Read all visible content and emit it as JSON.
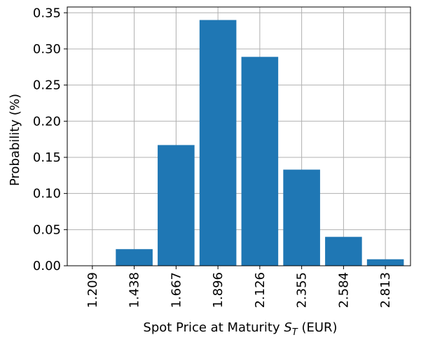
{
  "chart_data": {
    "type": "bar",
    "categories": [
      "1.209",
      "1.438",
      "1.667",
      "1.896",
      "2.126",
      "2.355",
      "2.584",
      "2.813"
    ],
    "values": [
      0.0,
      0.023,
      0.167,
      0.34,
      0.289,
      0.133,
      0.04,
      0.009
    ],
    "xlabel": "Spot Price at Maturity ",
    "xlabel_var": "S",
    "xlabel_sub": "T",
    "xlabel_unit": " (EUR)",
    "ylabel": "Probability (%)",
    "ylim": [
      0,
      0.358
    ],
    "yticks": [
      "0.00",
      "0.05",
      "0.10",
      "0.15",
      "0.20",
      "0.25",
      "0.30",
      "0.35"
    ],
    "ytick_values": [
      0,
      0.05,
      0.1,
      0.15,
      0.2,
      0.25,
      0.3,
      0.35
    ],
    "grid": true,
    "bar_color": "#1f77b4",
    "grid_color": "#b0b0b0"
  }
}
